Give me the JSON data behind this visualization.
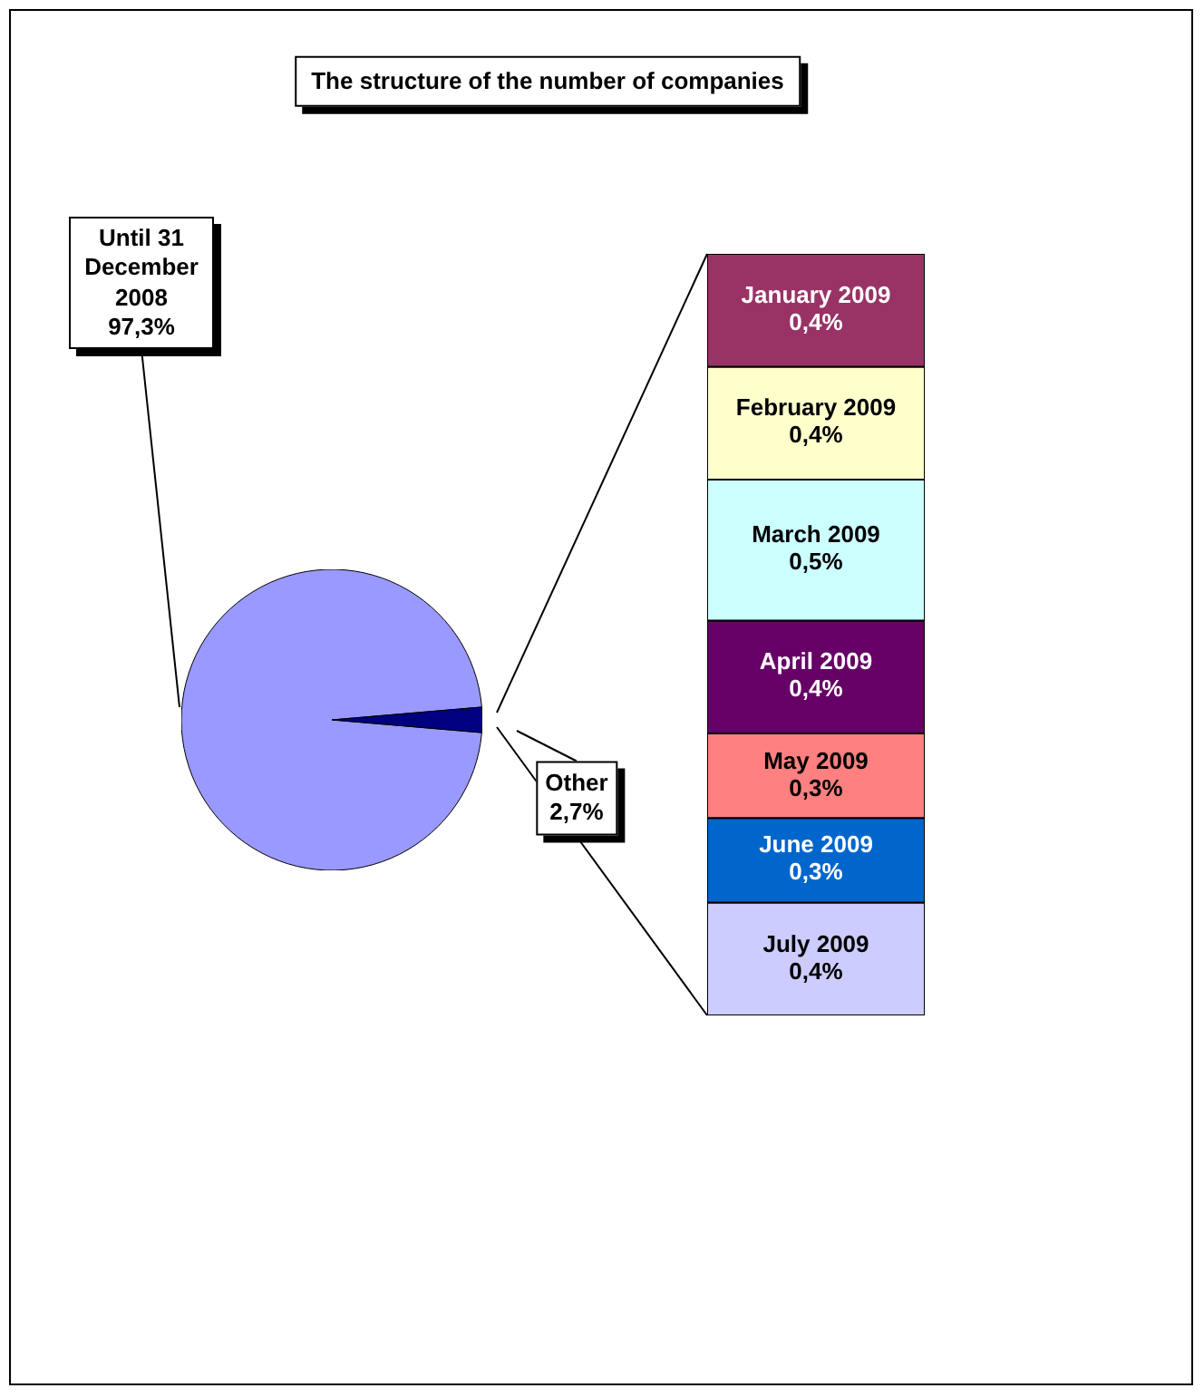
{
  "chart_data": [
    {
      "type": "pie",
      "title": "The structure of the number of companies",
      "categories": [
        "Until 31 December 2008",
        "Other"
      ],
      "values": [
        97.3,
        2.7
      ],
      "colors": [
        "#9999ff",
        "#000080"
      ],
      "value_labels": [
        "97,3%",
        "2,7%"
      ]
    },
    {
      "type": "bar",
      "stacked": true,
      "categories": [
        null
      ],
      "series": [
        {
          "name": "July 2009",
          "color": "#ccccff",
          "values": [
            0.4
          ],
          "value_labels": [
            "0,4%"
          ]
        },
        {
          "name": "June 2009",
          "color": "#0066cc",
          "values": [
            0.3
          ],
          "value_labels": [
            "0,3%"
          ]
        },
        {
          "name": "May 2009",
          "color": "#ff8080",
          "values": [
            0.3
          ],
          "value_labels": [
            "0,3%"
          ]
        },
        {
          "name": "April 2009",
          "color": "#660066",
          "values": [
            0.4
          ],
          "value_labels": [
            "0,4%"
          ]
        },
        {
          "name": "March 2009",
          "color": "#ccffff",
          "values": [
            0.5
          ],
          "value_labels": [
            "0,5%"
          ]
        },
        {
          "name": "February 2009",
          "color": "#ffffcc",
          "values": [
            0.4
          ],
          "value_labels": [
            "0,4%"
          ]
        },
        {
          "name": "January 2009",
          "color": "#993366",
          "values": [
            0.4
          ],
          "value_labels": [
            "0,4%"
          ]
        }
      ]
    }
  ]
}
